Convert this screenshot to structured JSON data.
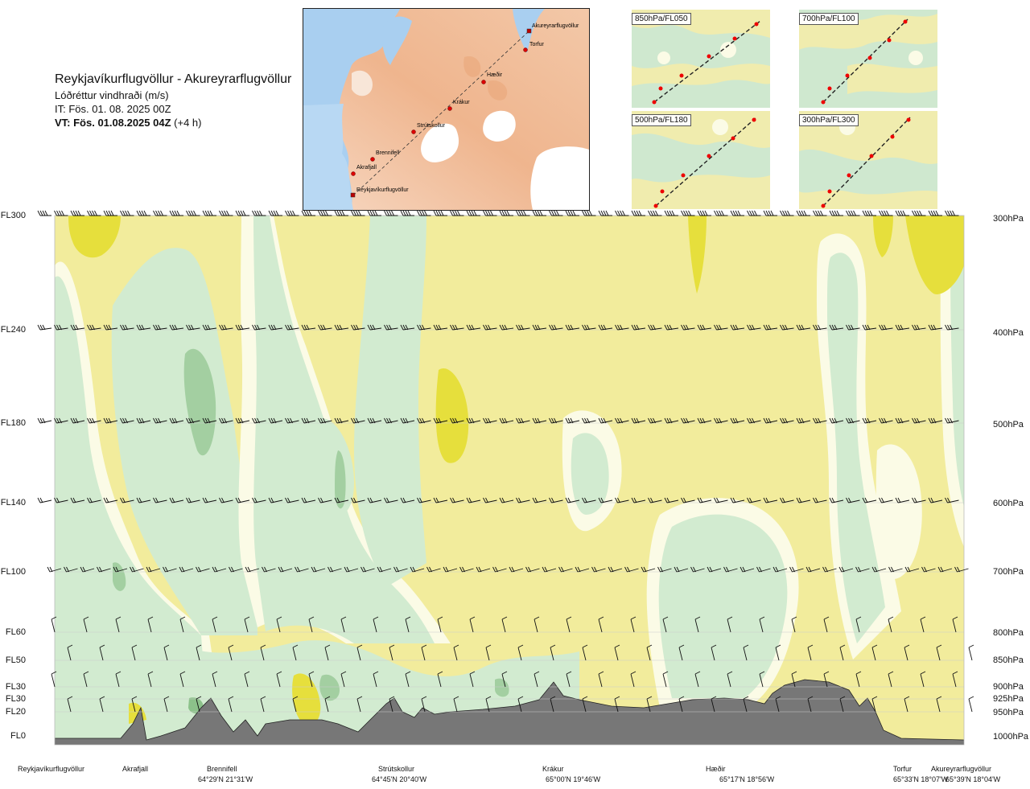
{
  "header": {
    "title": "Reykjavíkurflugvöllur - Akureyrarflugvöllur",
    "subtitle": "Lóðréttur vindhraði (m/s)",
    "issue_time": "IT: Fös. 01. 08. 2025 00Z",
    "valid_time_bold": "VT: Fös. 01.08.2025 04Z",
    "valid_time_offset": "(+4 h)"
  },
  "route_map": {
    "waypoints": [
      {
        "label": "Akureyrarflugvöllur"
      },
      {
        "label": "Torfur"
      },
      {
        "label": "Hæðir"
      },
      {
        "label": "Krákur"
      },
      {
        "label": "Strútskollur"
      },
      {
        "label": "Brennifell"
      },
      {
        "label": "Akrafjall"
      },
      {
        "label": "Reykjavíkurflugvöllur"
      }
    ]
  },
  "mini_maps": [
    {
      "label": "850hPa/FL050"
    },
    {
      "label": "700hPa/FL100"
    },
    {
      "label": "500hPa/FL180"
    },
    {
      "label": "300hPa/FL300"
    }
  ],
  "chart_data": {
    "type": "heatmap",
    "title": "Lóðréttur vindhraði (m/s)",
    "y_levels": [
      {
        "fl": "FL300",
        "hpa": "300hPa"
      },
      {
        "fl": "FL240",
        "hpa": "400hPa"
      },
      {
        "fl": "FL180",
        "hpa": "500hPa"
      },
      {
        "fl": "FL140",
        "hpa": "600hPa"
      },
      {
        "fl": "FL100",
        "hpa": "700hPa"
      },
      {
        "fl": "FL60",
        "hpa": "800hPa"
      },
      {
        "fl": "FL50",
        "hpa": "850hPa"
      },
      {
        "fl": "FL30",
        "hpa": "900hPa"
      },
      {
        "fl": "FL30",
        "hpa": "925hPa"
      },
      {
        "fl": "FL20",
        "hpa": "950hPa"
      },
      {
        "fl": "FL0",
        "hpa": "1000hPa"
      }
    ],
    "x_locations": [
      {
        "name": "Reykjavíkurflugvöllur",
        "coord": ""
      },
      {
        "name": "Akrafjall",
        "coord": ""
      },
      {
        "name": "Brennifell",
        "coord": "64°29'N 21°31'W"
      },
      {
        "name": "Strútskollur",
        "coord": "64°45'N 20°40'W"
      },
      {
        "name": "Krákur",
        "coord": "65°00'N 19°46'W"
      },
      {
        "name": "Hæðir",
        "coord": "65°17'N 18°56'W"
      },
      {
        "name": "Torfur",
        "coord": "65°33'N 18°07'W"
      },
      {
        "name": "Akureyrarflugvöllur",
        "coord": "65°39'N 18°04'W"
      }
    ],
    "colors": {
      "sinking_strong": "#e6df3c",
      "sinking": "#f2ec9c",
      "neutral": "#fbfbe6",
      "rising": "#d2ebd0",
      "rising_strong": "#a3cfa1",
      "terrain": "#777777"
    },
    "grid": true
  }
}
